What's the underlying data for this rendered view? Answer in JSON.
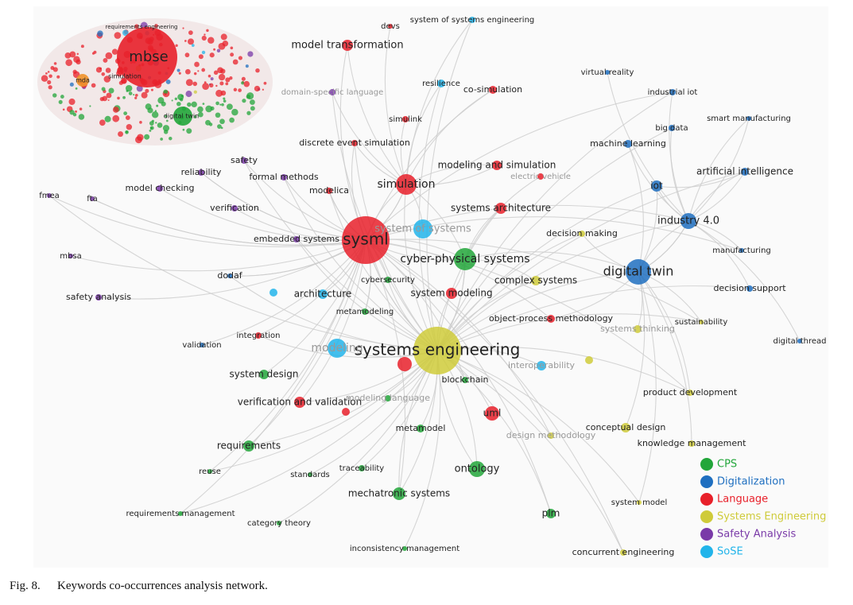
{
  "nodes": [
    {
      "label": "sysml",
      "cluster": "Language"
    },
    {
      "label": "systems engineering",
      "cluster": "Systems Engineering"
    },
    {
      "label": "digital twin",
      "cluster": "Digitalization"
    },
    {
      "label": "cyber-physical systems",
      "cluster": "CPS"
    },
    {
      "label": "simulation",
      "cluster": "Language"
    },
    {
      "label": "system of systems",
      "cluster": "SoSE"
    },
    {
      "label": "industry 4.0",
      "cluster": "Digitalization"
    },
    {
      "label": "modeling",
      "cluster": "SoSE"
    },
    {
      "label": "ontology",
      "cluster": "CPS"
    },
    {
      "label": "model transformation",
      "cluster": "Language"
    },
    {
      "label": "systems architecture",
      "cluster": "Language"
    },
    {
      "label": "modeling and simulation",
      "cluster": "Language"
    },
    {
      "label": "mechatronic systems",
      "cluster": "CPS"
    },
    {
      "label": "uml",
      "cluster": "Language"
    },
    {
      "label": "iot",
      "cluster": "Digitalization"
    },
    {
      "label": "requirements",
      "cluster": "CPS"
    },
    {
      "label": "system modeling",
      "cluster": "Language"
    },
    {
      "label": "architecture",
      "cluster": "SoSE"
    },
    {
      "label": "verification and validation",
      "cluster": "Language"
    },
    {
      "label": "system design",
      "cluster": "CPS"
    },
    {
      "label": "complex systems",
      "cluster": "Systems Engineering"
    },
    {
      "label": "object-process methodology",
      "cluster": "Language"
    },
    {
      "label": "artificial intelligence",
      "cluster": "Digitalization"
    },
    {
      "label": "machine learning",
      "cluster": "Digitalization"
    },
    {
      "label": "plm",
      "cluster": "CPS"
    },
    {
      "label": "conceptual design",
      "cluster": "Systems Engineering"
    },
    {
      "label": "safety",
      "cluster": "Safety Analysis"
    },
    {
      "label": "reliability",
      "cluster": "Safety Analysis"
    },
    {
      "label": "formal methods",
      "cluster": "Safety Analysis"
    },
    {
      "label": "model checking",
      "cluster": "Safety Analysis"
    },
    {
      "label": "modelica",
      "cluster": "Language"
    },
    {
      "label": "verification",
      "cluster": "Safety Analysis"
    },
    {
      "label": "fmea",
      "cluster": "Safety Analysis"
    },
    {
      "label": "fta",
      "cluster": "Safety Analysis"
    },
    {
      "label": "embedded systems",
      "cluster": "Safety Analysis"
    },
    {
      "label": "mbsa",
      "cluster": "Safety Analysis"
    },
    {
      "label": "dodaf",
      "cluster": "Digitalization"
    },
    {
      "label": "safety analysis",
      "cluster": "Safety Analysis"
    },
    {
      "label": "cybersecurity",
      "cluster": "CPS"
    },
    {
      "label": "metamodeling",
      "cluster": "CPS"
    },
    {
      "label": "integration",
      "cluster": "Language"
    },
    {
      "label": "validation",
      "cluster": "Digitalization"
    },
    {
      "label": "blockchain",
      "cluster": "CPS"
    },
    {
      "label": "modeling language",
      "cluster": "CPS"
    },
    {
      "label": "metamodel",
      "cluster": "CPS"
    },
    {
      "label": "reuse",
      "cluster": "CPS"
    },
    {
      "label": "standards",
      "cluster": "CPS"
    },
    {
      "label": "traceability",
      "cluster": "CPS"
    },
    {
      "label": "requirements management",
      "cluster": "CPS"
    },
    {
      "label": "category theory",
      "cluster": "CPS"
    },
    {
      "label": "inconsistency management",
      "cluster": "CPS"
    },
    {
      "label": "design methodology",
      "cluster": "Systems Engineering"
    },
    {
      "label": "interoperability",
      "cluster": "SoSE"
    },
    {
      "label": "systems thinking",
      "cluster": "Systems Engineering"
    },
    {
      "label": "sustainability",
      "cluster": "Systems Engineering"
    },
    {
      "label": "digital thread",
      "cluster": "Digitalization"
    },
    {
      "label": "decision support",
      "cluster": "Digitalization"
    },
    {
      "label": "manufacturing",
      "cluster": "Digitalization"
    },
    {
      "label": "decision making",
      "cluster": "Systems Engineering"
    },
    {
      "label": "electric vehicle",
      "cluster": "Language"
    },
    {
      "label": "product development",
      "cluster": "Systems Engineering"
    },
    {
      "label": "knowledge management",
      "cluster": "Systems Engineering"
    },
    {
      "label": "system model",
      "cluster": "Systems Engineering"
    },
    {
      "label": "concurrent engineering",
      "cluster": "Systems Engineering"
    },
    {
      "label": "big data",
      "cluster": "Digitalization"
    },
    {
      "label": "smart manufacturing",
      "cluster": "Digitalization"
    },
    {
      "label": "industrial iot",
      "cluster": "Digitalization"
    },
    {
      "label": "virtual reality",
      "cluster": "Digitalization"
    },
    {
      "label": "resilience",
      "cluster": "SoSE"
    },
    {
      "label": "co-simulation",
      "cluster": "Language"
    },
    {
      "label": "domain-specific language",
      "cluster": "Safety Analysis"
    },
    {
      "label": "simulink",
      "cluster": "Language"
    },
    {
      "label": "discrete event simulation",
      "cluster": "Language"
    },
    {
      "label": "devs",
      "cluster": "Language"
    },
    {
      "label": "system of systems engineering",
      "cluster": "SoSE"
    }
  ],
  "clusters": [
    {
      "name": "CPS",
      "color": "#22a63a"
    },
    {
      "name": "Digitalization",
      "color": "#1f6fc0"
    },
    {
      "name": "Language",
      "color": "#e8202a"
    },
    {
      "name": "Systems Engineering",
      "color": "#cfcb3a"
    },
    {
      "name": "Safety Analysis",
      "color": "#7a3aa8"
    },
    {
      "name": "SoSE",
      "color": "#22b4ea"
    }
  ],
  "inset": {
    "labels": [
      "mbse",
      "simulation",
      "digital twin",
      "mda",
      "requirements engineering"
    ]
  },
  "caption": {
    "number": "Fig. 8.",
    "text": "Keywords co-occurrences analysis network."
  }
}
